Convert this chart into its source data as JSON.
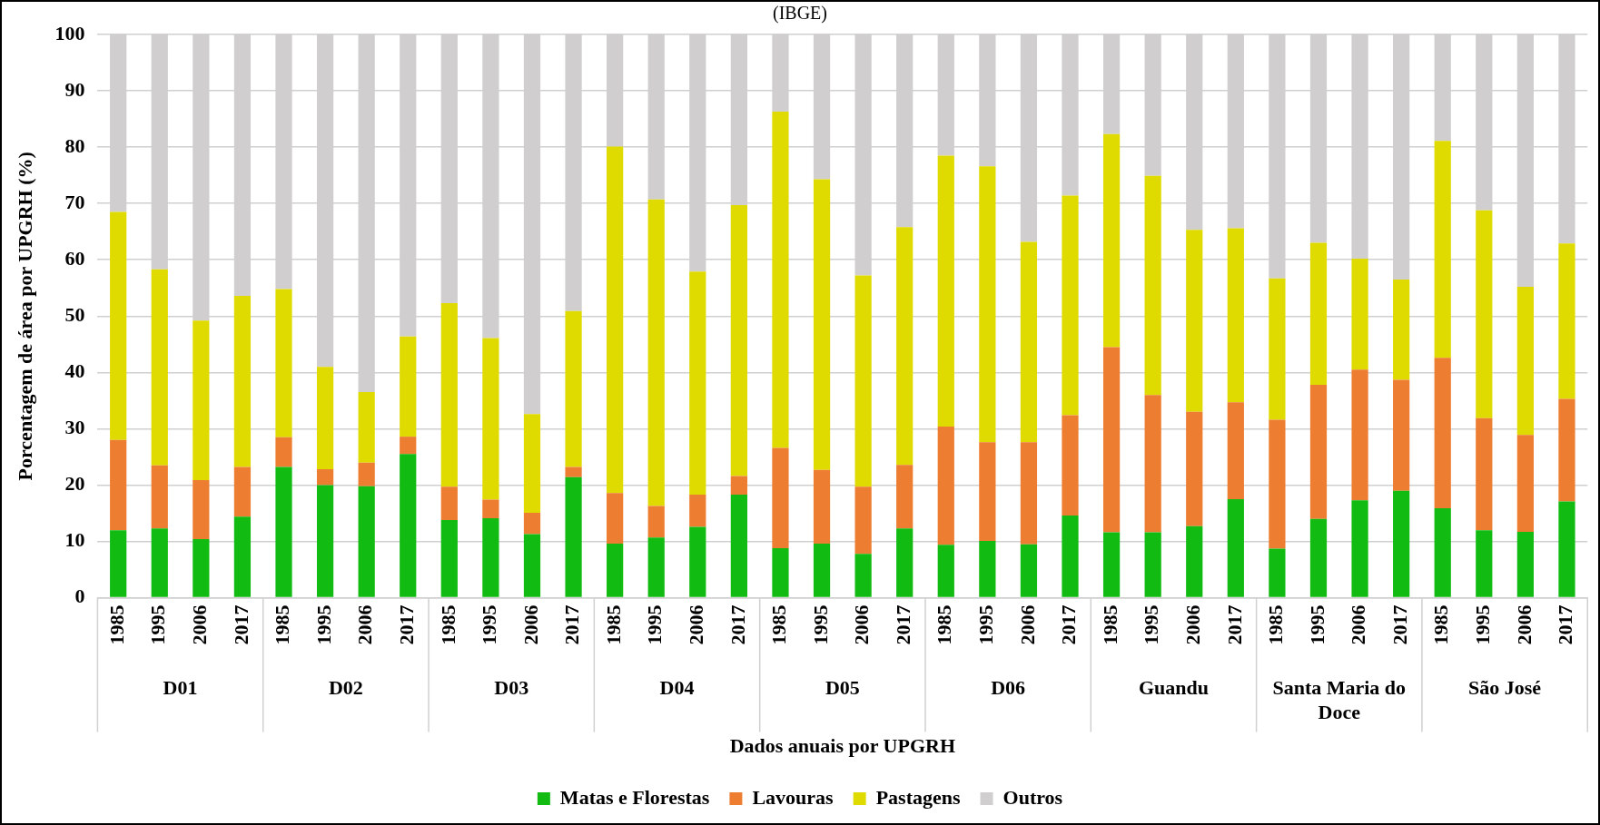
{
  "chart_data": {
    "type": "bar",
    "stacked": true,
    "title": "(IBGE)",
    "xlabel": "Dados anuais por UPGRH",
    "ylabel": "Porcentagem de área por UPGRH (%)",
    "categories": [
      "1985",
      "1995",
      "2006",
      "2017",
      "1985",
      "1995",
      "2006",
      "2017",
      "1985",
      "1995",
      "2006",
      "2017",
      "1985",
      "1995",
      "2006",
      "2017",
      "1985",
      "1995",
      "2006",
      "2017",
      "1985",
      "1995",
      "2006",
      "2017",
      "1985",
      "1995",
      "2006",
      "2017",
      "1985",
      "1995",
      "2006",
      "2017",
      "1985",
      "1995",
      "2006",
      "2017"
    ],
    "annotations": [
      "D01",
      "D02",
      "D03",
      "D04",
      "D05",
      "D06",
      "Guandu",
      "Santa Maria do Doce",
      "São José"
    ],
    "series": [
      {
        "name": "Matas e Florestas",
        "color": "#12bb12",
        "values": [
          12,
          12.3,
          10.4,
          14.4,
          23.2,
          20,
          19.8,
          25.5,
          13.8,
          14.1,
          11.3,
          21.4,
          9.6,
          10.7,
          12.6,
          18.3,
          8.8,
          9.6,
          7.8,
          12.3,
          9.4,
          10.1,
          9.5,
          14.6,
          11.6,
          11.6,
          12.7,
          17.5,
          8.7,
          14,
          17.3,
          19,
          15.9,
          12,
          11.7,
          17.1
        ]
      },
      {
        "name": "Lavouras",
        "color": "#ed7d31",
        "values": [
          16,
          11.2,
          10.5,
          8.8,
          5.3,
          2.8,
          4.2,
          3.1,
          5.9,
          3.3,
          3.8,
          1.8,
          9,
          5.6,
          5.7,
          3.3,
          17.8,
          13.1,
          11.9,
          11.3,
          21,
          17.5,
          18.1,
          17.8,
          32.9,
          24.4,
          20.3,
          17.2,
          22.9,
          23.8,
          23.2,
          19.7,
          26.7,
          19.9,
          17.2,
          18.2
        ]
      },
      {
        "name": "Pastagens",
        "color": "#dfdb00",
        "values": [
          40.5,
          34.8,
          28.3,
          30.4,
          26.3,
          18.2,
          12.5,
          17.8,
          32.6,
          28.7,
          17.5,
          27.7,
          61.5,
          54.4,
          39.6,
          48.1,
          59.7,
          51.6,
          37.5,
          42.2,
          48.1,
          49,
          35.6,
          39,
          37.8,
          38.9,
          32.3,
          30.9,
          25.1,
          25.2,
          19.7,
          17.8,
          38.5,
          36.9,
          26.3,
          27.6
        ]
      },
      {
        "name": "Outros",
        "color": "#d0cece",
        "values": [
          31.5,
          41.7,
          50.8,
          46.4,
          45.2,
          59,
          63.5,
          53.6,
          47.7,
          53.9,
          67.4,
          49.1,
          19.9,
          29.3,
          42.1,
          30.3,
          13.7,
          25.7,
          42.8,
          34.2,
          21.5,
          23.4,
          36.8,
          28.6,
          17.7,
          25.1,
          34.7,
          34.4,
          43.3,
          37,
          39.8,
          43.5,
          18.9,
          31.2,
          44.8,
          37.1
        ]
      }
    ],
    "ylim": [
      0,
      100
    ],
    "yticks": [
      0,
      10,
      20,
      30,
      40,
      50,
      60,
      70,
      80,
      90,
      100
    ],
    "grid": "y",
    "legend": "bottom"
  }
}
